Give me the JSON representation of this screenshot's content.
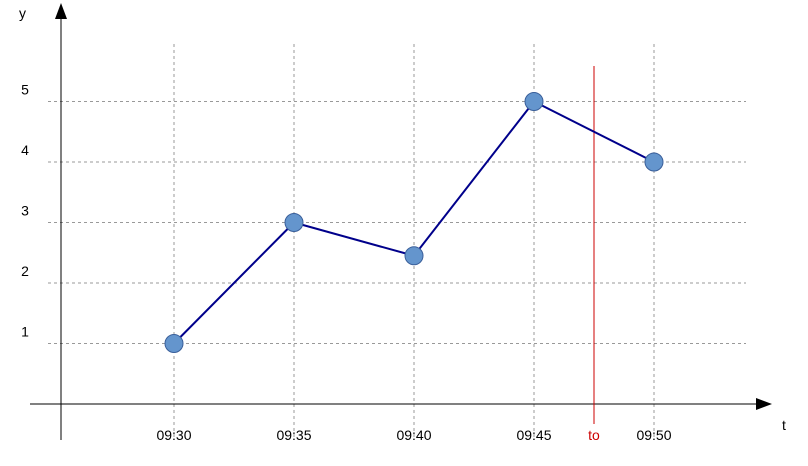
{
  "chart_data": {
    "type": "line",
    "xlabel": "t",
    "ylabel": "y",
    "x_tick_labels": [
      "09:30",
      "09:35",
      "09:40",
      "09:45",
      "09:50"
    ],
    "y_tick_labels": [
      "1",
      "2",
      "3",
      "4",
      "5"
    ],
    "series": [
      {
        "x": [
          "09:30",
          "09:35",
          "09:40",
          "09:45",
          "09:50"
        ],
        "values": [
          1.0,
          3.0,
          2.45,
          5.0,
          4.0
        ]
      }
    ],
    "ylim": [
      0,
      5.5
    ],
    "grid": true,
    "marker_line": {
      "label": "to",
      "x": "09:47.5",
      "color": "#cc0000"
    },
    "colors": {
      "line": "#00008b",
      "marker_fill": "#6495cd",
      "marker_stroke": "#3a5f9a",
      "grid": "#999999",
      "axis": "#000000"
    }
  }
}
